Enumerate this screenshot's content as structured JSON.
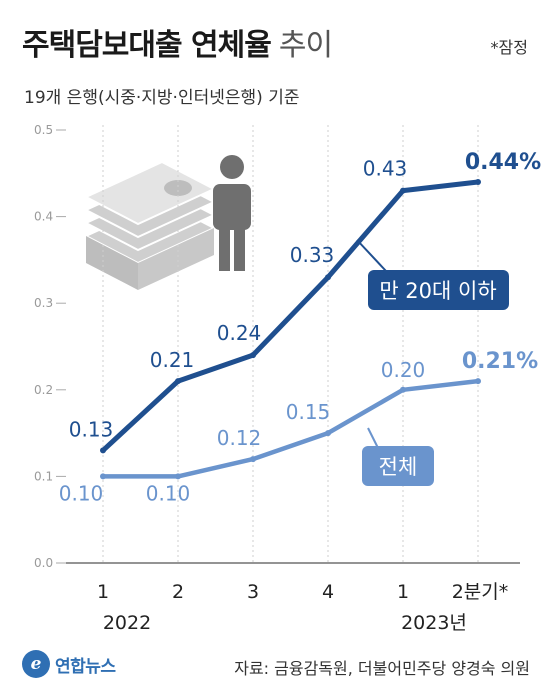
{
  "header": {
    "title_main": "주택담보대출 연체율",
    "title_light": "추이",
    "prelim_note": "*잠정",
    "subtitle": "19개 은행(시중·지방·인터넷은행) 기준"
  },
  "footer": {
    "logo_glyph": "e",
    "logo_text": "연합뉴스",
    "source": "자료: 금융감독원, 더불어민주당 양경숙 의원"
  },
  "chart_data": {
    "type": "line",
    "x_tick_labels": [
      "1",
      "2",
      "3",
      "4",
      "1",
      "2분기*"
    ],
    "year_labels": [
      "2022",
      "2023년"
    ],
    "y_ticks": [
      "0.0",
      "0.1",
      "0.2",
      "0.3",
      "0.4",
      "0.5"
    ],
    "ylim": [
      0,
      0.5
    ],
    "grid": "vertical dotted",
    "series": [
      {
        "name": "만 20대 이하",
        "values": [
          0.13,
          0.21,
          0.24,
          0.33,
          0.43,
          0.44
        ],
        "labels": [
          "0.13",
          "0.21",
          "0.24",
          "0.33",
          "0.43",
          "0.44%"
        ],
        "color": "#1f4f8f"
      },
      {
        "name": "전체",
        "values": [
          0.1,
          0.1,
          0.12,
          0.15,
          0.2,
          0.21
        ],
        "labels": [
          "0.10",
          "0.10",
          "0.12",
          "0.15",
          "0.20",
          "0.21%"
        ],
        "color": "#6a94cd"
      }
    ]
  },
  "illustration": {
    "money_icon": "money-stack-icon",
    "person_icon": "person-icon",
    "colors": {
      "money": "#cfcfcf",
      "person": "#6f6f6f"
    }
  }
}
